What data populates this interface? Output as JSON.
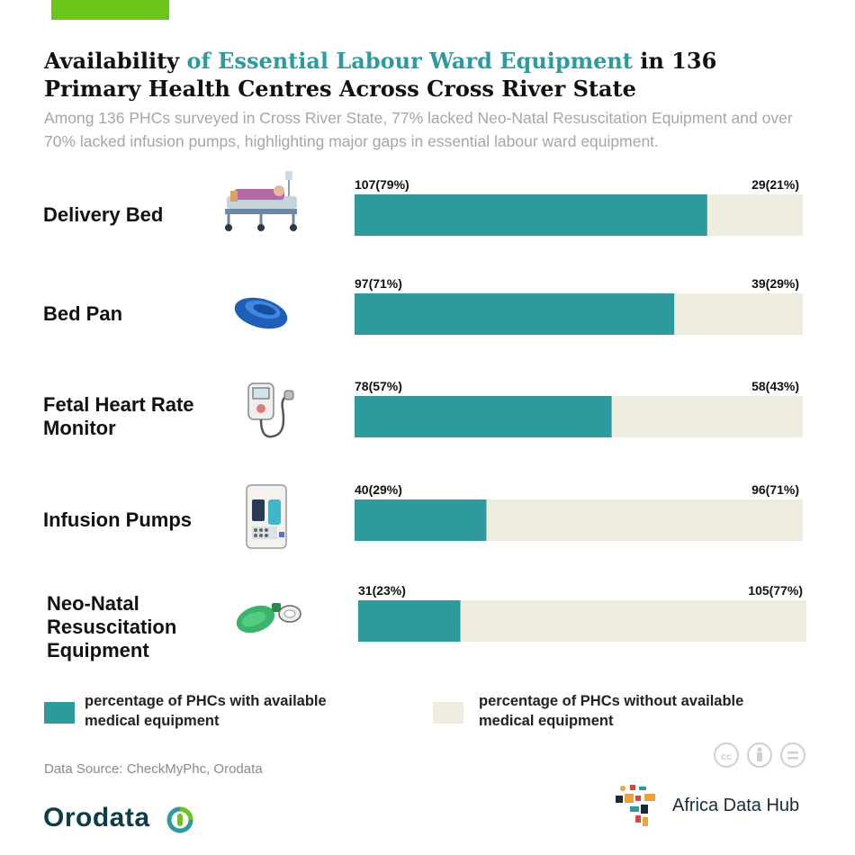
{
  "header": {
    "title_part1": "Availability ",
    "title_highlight": "of Essential Labour Ward Equipment",
    "title_part2": " in 136 Primary Health Centres Across Cross River State",
    "subtitle": "Among 136 PHCs surveyed in Cross River State, 77% lacked Neo-Natal Resuscitation Equipment and over 70% lacked infusion pumps, highlighting major gaps in essential labour ward equipment."
  },
  "colors": {
    "available": "#2e9a9e",
    "not_available": "#efede0",
    "accent": "#6cc51b",
    "title_highlight": "#2e9a9e"
  },
  "chart_data": {
    "type": "bar",
    "orientation": "horizontal",
    "stacked": true,
    "total": 136,
    "categories": [
      "Delivery Bed",
      "Bed Pan",
      "Fetal Heart Rate Monitor",
      "Infusion Pumps",
      "Neo-Natal Resuscitation Equipment"
    ],
    "series": [
      {
        "name": "percentage of PHCs with available medical equipment",
        "values": [
          107,
          97,
          78,
          40,
          31
        ],
        "labels": [
          "107(79%)",
          "97(71%)",
          "78(57%)",
          "40(29%)",
          "31(23%)"
        ]
      },
      {
        "name": "percentage of PHCs without available medical equipment",
        "values": [
          29,
          39,
          58,
          96,
          105
        ],
        "labels": [
          "29(21%)",
          "39(29%)",
          "58(43%)",
          "96(71%)",
          "105(77%)"
        ]
      }
    ],
    "legend_position": "bottom"
  },
  "rows": [
    {
      "label": "Delivery Bed",
      "icon": "delivery-bed-icon"
    },
    {
      "label": "Bed Pan",
      "icon": "bed-pan-icon"
    },
    {
      "label": "Fetal Heart Rate Monitor",
      "icon": "fetal-monitor-icon"
    },
    {
      "label": "Infusion Pumps",
      "icon": "infusion-pump-icon"
    },
    {
      "label": "Neo-Natal Resuscitation Equipment",
      "icon": "resuscitator-icon"
    }
  ],
  "legend": {
    "available": "percentage of PHCs with available medical equipment",
    "not_available": "percentage of PHCs without available medical equipment"
  },
  "footer": {
    "source": "Data Source: CheckMyPhc, Orodata",
    "logo_left": "Orodata",
    "logo_right": "Africa Data Hub"
  }
}
